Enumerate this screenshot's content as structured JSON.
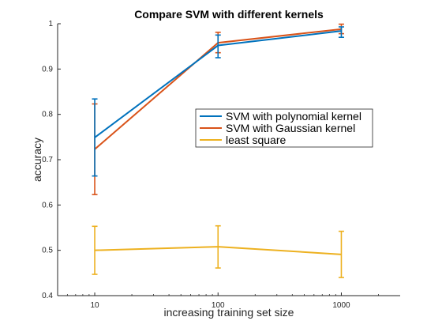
{
  "chart_data": {
    "type": "line",
    "title": "Compare SVM with different kernels",
    "xlabel": "increasing training set size",
    "ylabel": "accuracy",
    "x_scale": "log",
    "x": [
      10,
      100,
      1000
    ],
    "x_tick_labels": [
      "10",
      "100",
      "1000"
    ],
    "xlim": [
      5,
      3000
    ],
    "ylim": [
      0.4,
      1.0
    ],
    "y_ticks": [
      0.4,
      0.5,
      0.6,
      0.7,
      0.8,
      0.9,
      1.0
    ],
    "y_tick_labels": [
      "0.4",
      "0.5",
      "0.6",
      "0.7",
      "0.8",
      "0.9",
      "1"
    ],
    "grid": false,
    "legend_position": "center-right",
    "series": [
      {
        "name": "SVM with polynomial kernel",
        "color": "#0072BD",
        "values": [
          0.749,
          0.952,
          0.984
        ],
        "error_low": [
          0.664,
          0.925,
          0.97
        ],
        "error_high": [
          0.834,
          0.975,
          0.993
        ]
      },
      {
        "name": "SVM with Gaussian kernel",
        "color": "#D95319",
        "values": [
          0.723,
          0.958,
          0.988
        ],
        "error_low": [
          0.623,
          0.936,
          0.978
        ],
        "error_high": [
          0.823,
          0.981,
          0.999
        ]
      },
      {
        "name": "least square",
        "color": "#EDB120",
        "values": [
          0.5,
          0.508,
          0.491
        ],
        "error_low": [
          0.447,
          0.461,
          0.44
        ],
        "error_high": [
          0.553,
          0.554,
          0.542
        ]
      }
    ]
  }
}
